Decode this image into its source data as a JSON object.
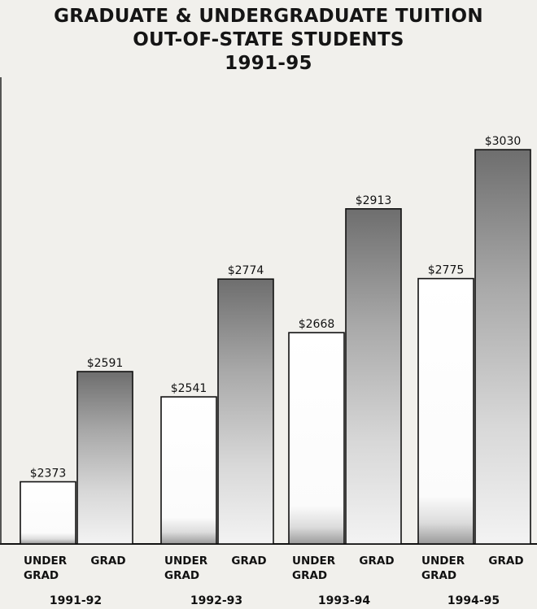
{
  "title_lines": [
    "GRADUATE & UNDERGRADUATE TUITION",
    "OUT-OF-STATE STUDENTS",
    "1991-95"
  ],
  "chart_data": {
    "type": "bar",
    "title": "GRADUATE & UNDERGRADUATE TUITION OUT-OF-STATE STUDENTS 1991-95",
    "categories": [
      "1991-92",
      "1992-93",
      "1993-94",
      "1994-95"
    ],
    "series": [
      {
        "name": "UNDER GRAD",
        "label_lines": [
          "UNDER",
          "GRAD"
        ],
        "values": [
          2373,
          2541,
          2668,
          2775
        ],
        "value_labels": [
          "$2373",
          "$2541",
          "$2668",
          "$2775"
        ],
        "color": "#ffffff"
      },
      {
        "name": "GRAD",
        "label_lines": [
          "GRAD"
        ],
        "values": [
          2591,
          2774,
          2913,
          3030
        ],
        "value_labels": [
          "$2591",
          "$2774",
          "$2913",
          "$3030"
        ],
        "color": "#8a8a8a"
      }
    ],
    "ylim": [
      2250,
      3080
    ],
    "grid": false,
    "legend": "none"
  }
}
